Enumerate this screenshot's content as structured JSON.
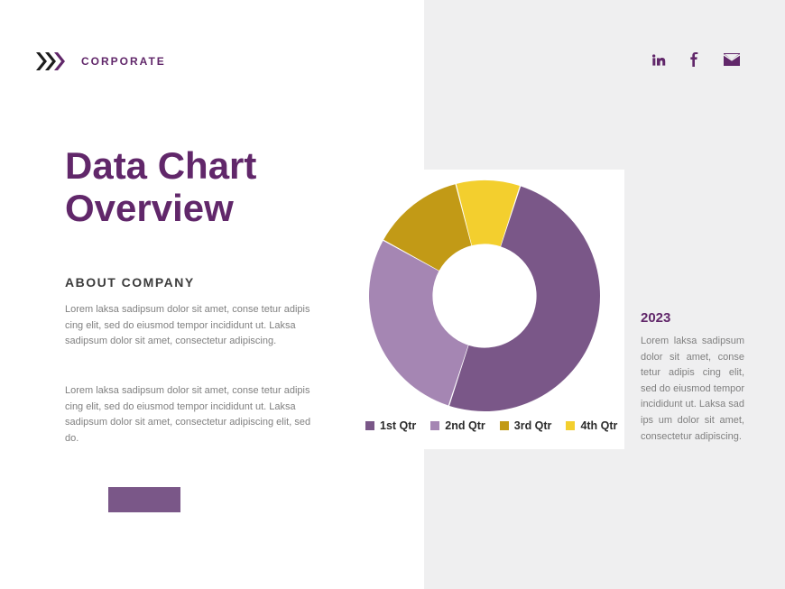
{
  "brand": "CORPORATE",
  "title_line1": "Data Chart",
  "title_line2": "Overview",
  "about": {
    "heading": "ABOUT COMPANY",
    "p1": "Lorem laksa sadipsum dolor sit amet, conse tetur adipis cing elit, sed do eiusmod tempor incididunt ut. Laksa sadipsum dolor sit amet, consectetur adipiscing.",
    "p2": "Lorem laksa sadipsum dolor sit amet, conse tetur adipis cing elit, sed do eiusmod tempor incididunt ut. Laksa sadipsum dolor sit amet, consectetur adipiscing elit, sed do."
  },
  "donut_chart": {
    "type": "donut",
    "series": [
      {
        "label": "1st Qtr",
        "value": 50,
        "color": "#7a5788"
      },
      {
        "label": "2nd Qtr",
        "value": 28,
        "color": "#a586b3"
      },
      {
        "label": "3rd Qtr",
        "value": 13,
        "color": "#c29a16"
      },
      {
        "label": "4th Qtr",
        "value": 9,
        "color": "#f3cf2e"
      }
    ],
    "inner_radius_ratio": 0.45,
    "start_angle_deg": -72,
    "direction": "clockwise",
    "background_color": "#ffffff",
    "gap_deg": 0.6
  },
  "legend_labels": {
    "q1": "1st Qtr",
    "q2": "2nd Qtr",
    "q3": "3rd Qtr",
    "q4": "4th Qtr"
  },
  "sidebar": {
    "year": "2023",
    "text": "Lorem laksa sadipsum dolor sit amet, conse tetur adipis cing elit, sed do eiusmod tempor incididunt ut. Laksa sad ips um dolor sit amet, consectetur adipiscing."
  },
  "colors": {
    "brand_purple": "#61276a",
    "mid_purple": "#7a5788",
    "light_purple": "#a586b3",
    "gold": "#c29a16",
    "yellow": "#f3cf2e",
    "bg_grey": "#efeff0",
    "text_grey": "#808080"
  },
  "accent_bar_color": "#7a5788"
}
